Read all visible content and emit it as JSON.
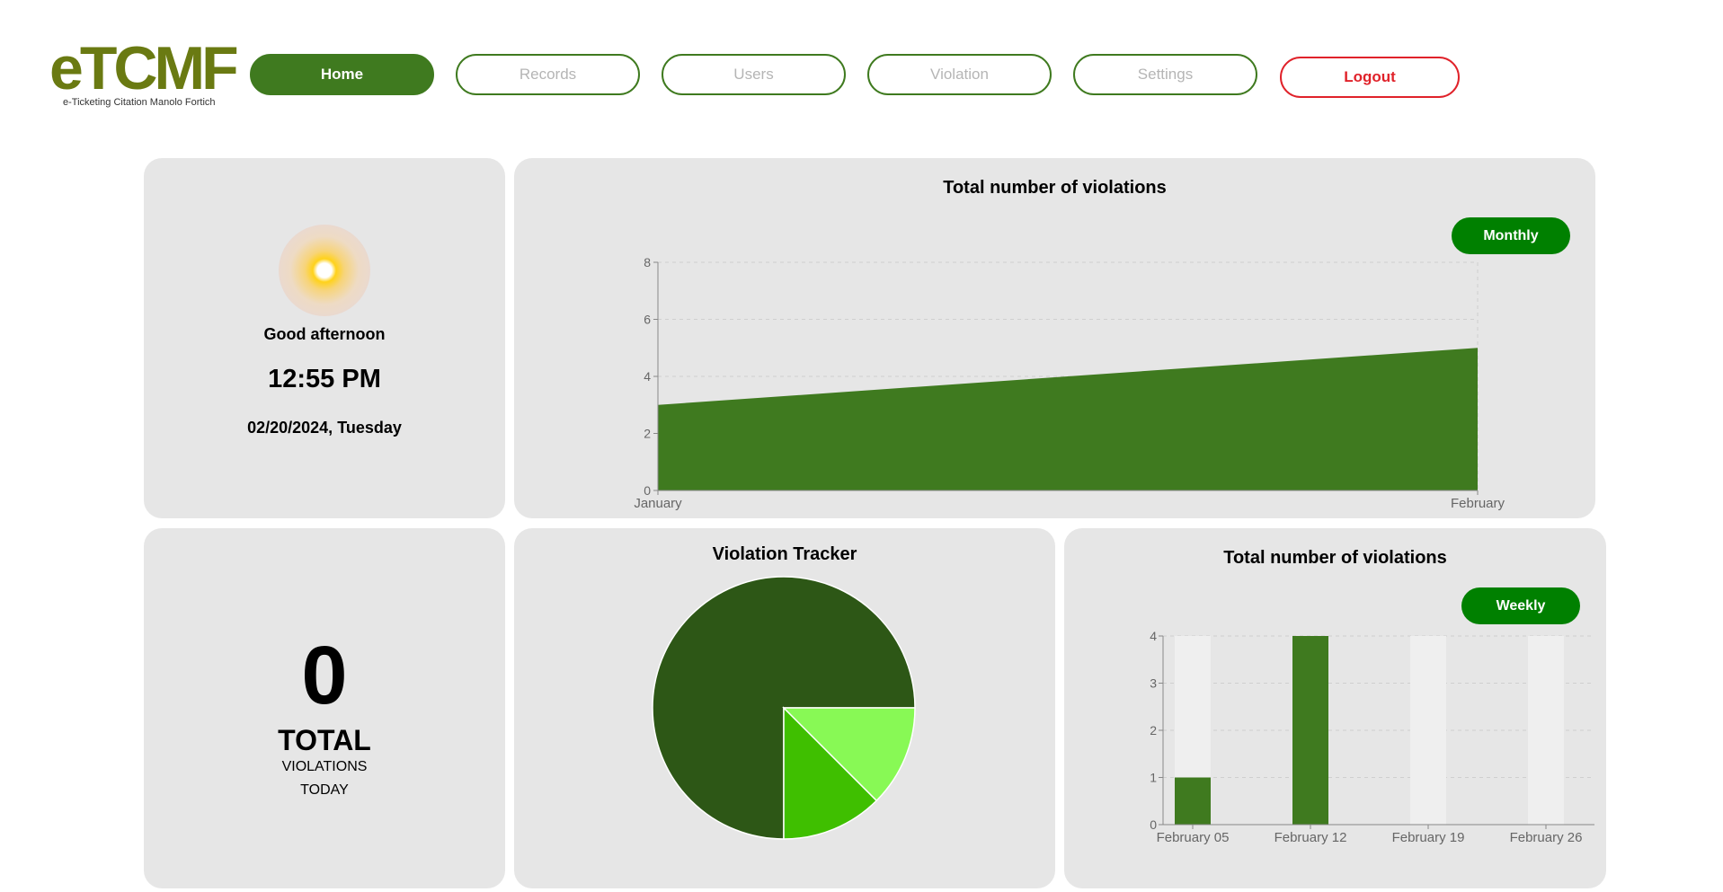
{
  "brand": {
    "logo_main": "eTCMF",
    "logo_sub": "e-Ticketing Citation Manolo Fortich"
  },
  "nav": {
    "home": "Home",
    "records": "Records",
    "users": "Users",
    "violation": "Violation",
    "settings": "Settings",
    "logout": "Logout"
  },
  "greeting": {
    "message": "Good afternoon",
    "time": "12:55 PM",
    "date": "02/20/2024,",
    "weekday": "Tuesday"
  },
  "total_today": {
    "count": "0",
    "label_total": "TOTAL",
    "label_violations": "VIOLATIONS",
    "label_today": "TODAY"
  },
  "monthly_card": {
    "title": "Total number of violations",
    "toggle": "Monthly"
  },
  "tracker_card": {
    "title": "Violation Tracker"
  },
  "weekly_card": {
    "title": "Total number of violations",
    "toggle": "Weekly"
  },
  "colors": {
    "primary_green": "#3f7a1f",
    "pill_green": "#008000",
    "logout_red": "#e0222a",
    "pie_dark": "#2d5716",
    "pie_mid": "#3fbf00",
    "pie_light": "#88f955"
  },
  "chart_data": [
    {
      "type": "area",
      "categories": [
        "January",
        "February"
      ],
      "values": [
        3,
        5
      ],
      "ylim": [
        0,
        8
      ],
      "yticks": [
        0,
        2,
        4,
        6,
        8
      ],
      "grid": true
    },
    {
      "type": "pie",
      "values": [
        75,
        12.5,
        12.5
      ]
    },
    {
      "type": "bar",
      "categories": [
        "February 05",
        "February 12",
        "February 19",
        "February 26"
      ],
      "values": [
        1,
        4,
        0,
        0
      ],
      "ylim": [
        0,
        4
      ],
      "yticks": [
        0,
        1,
        2,
        3,
        4
      ],
      "grid": true
    }
  ]
}
